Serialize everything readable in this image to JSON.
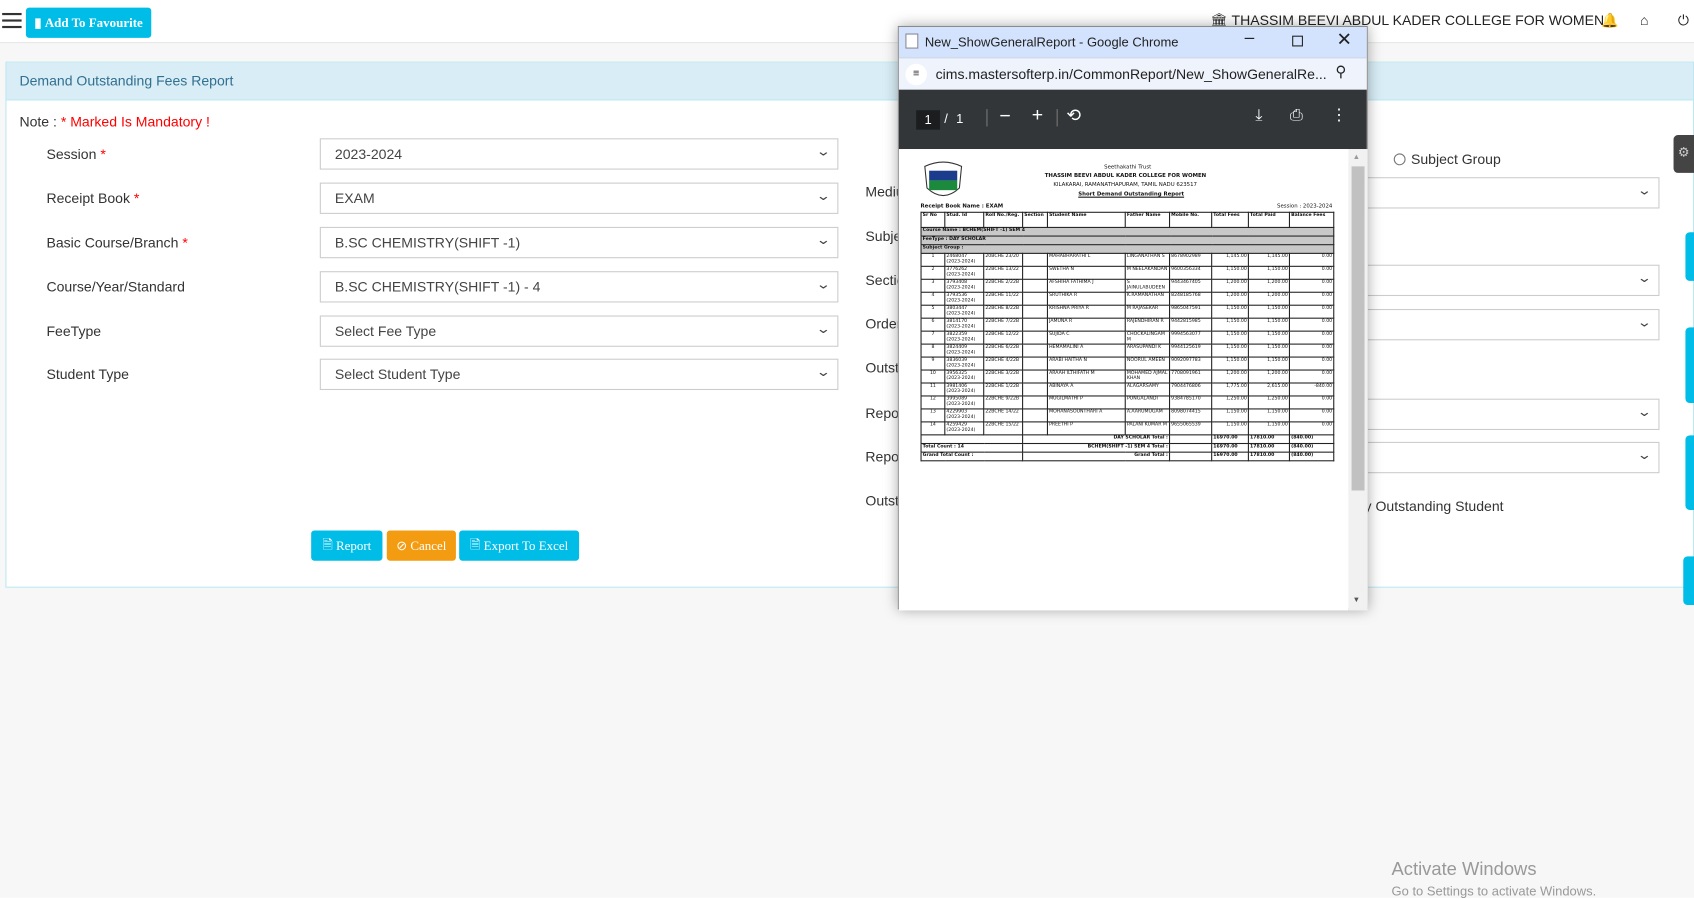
{
  "topbar": {
    "favourite_label": "Add To Favourite",
    "college_name": "THASSIM BEEVI ABDUL KADER COLLEGE FOR WOMEN"
  },
  "panel": {
    "title": "Demand Outstanding Fees Report",
    "note_label": "Note :",
    "note_text": "* Marked Is Mandatory !"
  },
  "form_left": [
    {
      "label": "Session",
      "required": "*",
      "value": "2023-2024"
    },
    {
      "label": "Receipt Book",
      "required": "*",
      "value": "EXAM"
    },
    {
      "label": "Basic Course/Branch",
      "required": "*",
      "value": "B.SC CHEMISTRY(SHIFT -1)"
    },
    {
      "label": "Course/Year/Standard",
      "required": "",
      "value": "B.SC CHEMISTRY(SHIFT -1) - 4"
    },
    {
      "label": "FeeType",
      "required": "",
      "value": "Select Fee Type"
    },
    {
      "label": "Student Type",
      "required": "",
      "value": "Select Student Type"
    }
  ],
  "form_right": {
    "labels": [
      "Mediu",
      "Subje",
      "Sectio",
      "Order",
      "Outsta",
      "Repor",
      "Repor",
      "Outsta"
    ],
    "radio_subject_group": "Subject Group",
    "outstanding_student": "y Outstanding Student"
  },
  "buttons": {
    "report": "Report",
    "cancel": "Cancel",
    "export": "Export To Excel"
  },
  "popup": {
    "window_title": "New_ShowGeneralReport - Google Chrome",
    "url": "cims.mastersofterp.in/CommonReport/New_ShowGeneralRe...",
    "page_current": "1",
    "page_total": "1",
    "report": {
      "trust": "Seethakathi Trust",
      "college": "THASSIM BEEVI ABDUL KADER COLLEGE FOR WOMEN",
      "address": "KILAKARAI, RAMANATHAPURAM, TAMIL NADU 623517",
      "title": "Short Demand Outstanding Report",
      "receipt_book": "Receipt Book Name : EXAM",
      "session": "Session : 2023-2024",
      "columns": [
        "Sr No",
        "Stud. Id",
        "Roll No./Reg.",
        "Section",
        "Student Name",
        "Father Name",
        "Mobile No.",
        "Total Fees",
        "Total Paid",
        "Balance Fees"
      ],
      "course_name": "Course Name : BCHEM(SHIFT -1) SEM 4",
      "fee_type": "FeeType : DAY SCHOLAR",
      "subject_group": "Subject Group :",
      "rows": [
        [
          "1",
          "2468047 (2023-2024)",
          "20BCHE 23/20",
          "",
          "MAHABHARATHI L",
          "LINGANATHAN S",
          "8678902989",
          "1,145.00",
          "1,145.00",
          "0.00"
        ],
        [
          "2",
          "3776262 (2023-2024)",
          "22BCHE 13/22",
          "",
          "SWETHA N",
          "M NEELAKANDAN",
          "9600356334",
          "1,150.00",
          "1,150.00",
          "0.00"
        ],
        [
          "3",
          "3793408 (2023-2024)",
          "22BCHE 2/22B",
          "",
          "AFSHIHA FATHIMA J",
          "S JAINULABUDEEN",
          "9443467405",
          "1,200.00",
          "1,200.00",
          "0.00"
        ],
        [
          "4",
          "3793536 (2023-2024)",
          "22BCHE 11/22",
          "",
          "SRUTHIKA R",
          "K.RAMANATHAN",
          "8248185768",
          "1,200.00",
          "1,200.00",
          "0.00"
        ],
        [
          "5",
          "3803447 (2023-2024)",
          "22BCHE 8/22B",
          "",
          "KRISHNA PRIYA R",
          "M RAJASEKAR",
          "9865047591",
          "1,150.00",
          "1,150.00",
          "0.00"
        ],
        [
          "6",
          "3814170 (2023-2024)",
          "22BCHE 7/22B",
          "",
          "JAMUNA R",
          "RAJENDHIRAN R",
          "9442815985",
          "1,150.00",
          "1,150.00",
          "0.00"
        ],
        [
          "7",
          "3822359 (2023-2024)",
          "22BCHE 12/22",
          "",
          "SUJIDA C",
          "CHOCKALINGAM M",
          "9994563077",
          "1,150.00",
          "1,150.00",
          "0.00"
        ],
        [
          "8",
          "3824409 (2023-2024)",
          "22BCHE 6/22B",
          "",
          "HEMAMALINI A",
          "ARASUPANDI K",
          "9944125619",
          "1,150.00",
          "1,150.00",
          "0.00"
        ],
        [
          "9",
          "3836039 (2023-2024)",
          "22BCHE 4/22B",
          "",
          "ARABI HAITHA N",
          "NOORUL AMEEN",
          "9092097783",
          "1,150.00",
          "1,150.00",
          "0.00"
        ],
        [
          "10",
          "3956325 (2023-2024)",
          "22BCHE 3/22B",
          "",
          "ARAAH ILTHIFATH M",
          "MOHAMED AJMAL KHAN",
          "7708091961",
          "1,200.00",
          "1,200.00",
          "0.00"
        ],
        [
          "11",
          "3981406 (2023-2024)",
          "22BCHE 1/22B",
          "",
          "ABINAYA A",
          "ALAGARSAMY",
          "7904476806",
          "1,775.00",
          "2,615.00",
          "-840.00"
        ],
        [
          "12",
          "3995089 (2023-2024)",
          "22BCHE 9/22B",
          "",
          "MUGILMATHI P",
          "PONGALANDI",
          "9384785170",
          "1,250.00",
          "1,250.00",
          "0.00"
        ],
        [
          "13",
          "4229903 (2023-2024)",
          "22BCHE 14/22",
          "",
          "MOHANASOUNTHARI A",
          "A.AARUMUGAM",
          "8098074415",
          "1,150.00",
          "1,150.00",
          "0.00"
        ],
        [
          "14",
          "4259429 (2023-2024)",
          "22BCHE 15/22",
          "",
          "PREETHI P",
          "PALANI KUMAR M",
          "9655065539",
          "1,150.00",
          "1,150.00",
          "0.00"
        ]
      ],
      "totals": [
        {
          "left": "",
          "label": "DAY SCHOLAR Total :",
          "fees": "16970.00",
          "paid": "17810.00",
          "balance": "(840.00)"
        },
        {
          "left": "Total Count : 14",
          "label": "BCHEM(SHIFT -1) SEM 4 Total :",
          "fees": "16970.00",
          "paid": "17810.00",
          "balance": "(840.00)"
        },
        {
          "left": "Grand Total Count :",
          "label": "Grand Total :",
          "fees": "16970.00",
          "paid": "17810.00",
          "balance": "(840.00)"
        }
      ]
    }
  },
  "watermark": {
    "line1": "Activate Windows",
    "line2": "Go to Settings to activate Windows."
  },
  "colors": {
    "accent": "#00bde8",
    "cancel": "#f39c12",
    "panel_header": "#d9edf7",
    "mandatory": "#ff0000"
  }
}
